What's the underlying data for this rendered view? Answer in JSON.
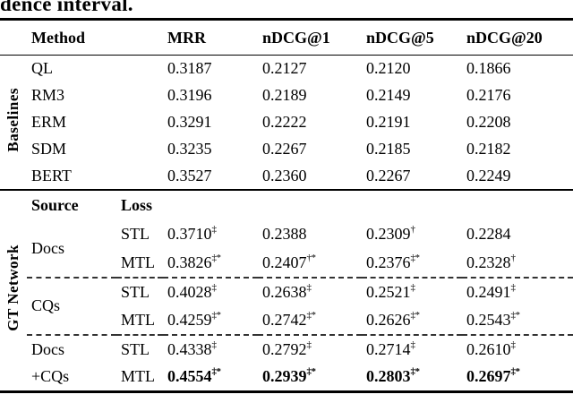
{
  "caption_fragment": "dence interval.",
  "table": {
    "columns": [
      "Method",
      "MRR",
      "nDCG@1",
      "nDCG@5",
      "nDCG@20"
    ],
    "baselines": {
      "label": "Baselines",
      "rows": [
        {
          "method": "QL",
          "values": [
            "0.3187",
            "0.2127",
            "0.2120",
            "0.1866"
          ]
        },
        {
          "method": "RM3",
          "values": [
            "0.3196",
            "0.2189",
            "0.2149",
            "0.2176"
          ]
        },
        {
          "method": "ERM",
          "values": [
            "0.3291",
            "0.2222",
            "0.2191",
            "0.2208"
          ]
        },
        {
          "method": "SDM",
          "values": [
            "0.3235",
            "0.2267",
            "0.2185",
            "0.2182"
          ]
        },
        {
          "method": "BERT",
          "values": [
            "0.3527",
            "0.2360",
            "0.2267",
            "0.2249"
          ]
        }
      ]
    },
    "gt_network": {
      "label": "GT Network",
      "subheader": {
        "source": "Source",
        "loss": "Loss"
      },
      "groups": [
        {
          "source": "Docs",
          "rows": [
            {
              "loss": "STL",
              "bold": false,
              "values": [
                [
                  "0.3710",
                  "‡"
                ],
                [
                  "0.2388",
                  ""
                ],
                [
                  "0.2309",
                  "†"
                ],
                [
                  "0.2284",
                  ""
                ]
              ]
            },
            {
              "loss": "MTL",
              "bold": false,
              "values": [
                [
                  "0.3826",
                  "‡*"
                ],
                [
                  "0.2407",
                  "†*"
                ],
                [
                  "0.2376",
                  "‡*"
                ],
                [
                  "0.2328",
                  "†"
                ]
              ]
            }
          ]
        },
        {
          "source": "CQs",
          "rows": [
            {
              "loss": "STL",
              "bold": false,
              "values": [
                [
                  "0.4028",
                  "‡"
                ],
                [
                  "0.2638",
                  "‡"
                ],
                [
                  "0.2521",
                  "‡"
                ],
                [
                  "0.2491",
                  "‡"
                ]
              ]
            },
            {
              "loss": "MTL",
              "bold": false,
              "values": [
                [
                  "0.4259",
                  "‡*"
                ],
                [
                  "0.2742",
                  "‡*"
                ],
                [
                  "0.2626",
                  "‡*"
                ],
                [
                  "0.2543",
                  "‡*"
                ]
              ]
            }
          ]
        },
        {
          "rows": [
            {
              "source": "Docs",
              "loss": "STL",
              "bold": false,
              "values": [
                [
                  "0.4338",
                  "‡"
                ],
                [
                  "0.2792",
                  "‡"
                ],
                [
                  "0.2714",
                  "‡"
                ],
                [
                  "0.2610",
                  "‡"
                ]
              ]
            },
            {
              "source": "+CQs",
              "loss": "MTL",
              "bold": true,
              "values": [
                [
                  "0.4554",
                  "‡*"
                ],
                [
                  "0.2939",
                  "‡*"
                ],
                [
                  "0.2803",
                  "‡*"
                ],
                [
                  "0.2697",
                  "‡*"
                ]
              ]
            }
          ]
        }
      ]
    }
  }
}
